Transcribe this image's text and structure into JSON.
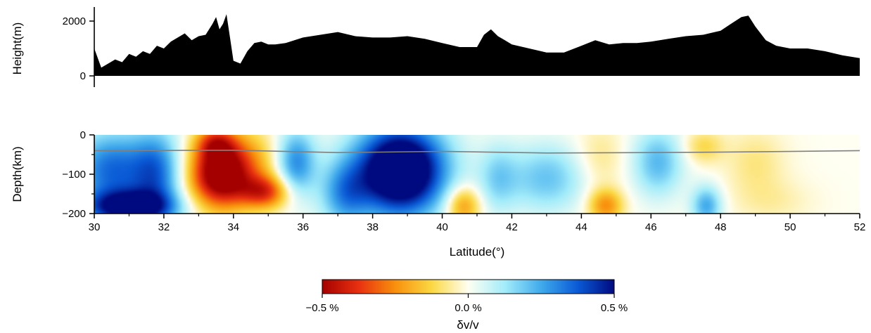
{
  "chart_data": [
    {
      "type": "area",
      "panel": "topography",
      "ylabel": "Height(m)",
      "ylim": [
        0,
        2400
      ],
      "yticks": [
        0,
        2000
      ],
      "xlim": [
        30,
        52
      ],
      "fill_color": "#000000",
      "x": [
        30.0,
        30.2,
        30.4,
        30.6,
        30.8,
        31.0,
        31.2,
        31.4,
        31.6,
        31.8,
        32.0,
        32.2,
        32.4,
        32.6,
        32.8,
        33.0,
        33.2,
        33.4,
        33.5,
        33.6,
        33.7,
        33.8,
        33.9,
        34.0,
        34.2,
        34.4,
        34.6,
        34.8,
        35.0,
        35.2,
        35.5,
        36.0,
        36.5,
        37.0,
        37.5,
        38.0,
        38.5,
        39.0,
        39.5,
        40.0,
        40.5,
        41.0,
        41.2,
        41.4,
        41.6,
        41.8,
        42.0,
        42.5,
        43.0,
        43.5,
        44.0,
        44.4,
        44.8,
        45.2,
        45.6,
        46.0,
        46.5,
        47.0,
        47.5,
        48.0,
        48.3,
        48.6,
        48.8,
        49.0,
        49.3,
        49.6,
        50.0,
        50.5,
        51.0,
        51.5,
        52.0
      ],
      "y": [
        1000,
        300,
        450,
        600,
        500,
        800,
        700,
        900,
        800,
        1100,
        1000,
        1250,
        1400,
        1550,
        1300,
        1450,
        1500,
        1900,
        2150,
        1700,
        1900,
        2250,
        1400,
        550,
        450,
        900,
        1200,
        1250,
        1150,
        1150,
        1200,
        1400,
        1500,
        1600,
        1450,
        1400,
        1400,
        1450,
        1350,
        1200,
        1050,
        1050,
        1500,
        1700,
        1450,
        1300,
        1150,
        1000,
        850,
        850,
        1100,
        1300,
        1150,
        1200,
        1200,
        1250,
        1350,
        1450,
        1500,
        1650,
        1900,
        2150,
        2200,
        1800,
        1300,
        1100,
        1000,
        1000,
        900,
        750,
        650
      ]
    },
    {
      "type": "heatmap",
      "panel": "tomography",
      "xlabel": "Latitude(°)",
      "ylabel": "Depth(km)",
      "xlim": [
        30,
        52
      ],
      "ylim": [
        -200,
        0
      ],
      "xticks": [
        30,
        32,
        34,
        36,
        38,
        40,
        42,
        44,
        46,
        48,
        50,
        52
      ],
      "yticks": [
        0,
        -100,
        -200
      ],
      "moho_line": {
        "color": "#808080",
        "x": [
          30,
          34,
          37,
          40,
          43,
          46,
          49,
          52
        ],
        "y": [
          -40,
          -39,
          -45,
          -42,
          -46,
          -45,
          -43,
          -40
        ]
      },
      "anomalies": [
        {
          "x": 31.0,
          "y": -185,
          "v": 0.5,
          "sx": 0.9,
          "sy": 30
        },
        {
          "x": 30.5,
          "y": -90,
          "v": 0.35,
          "sx": 0.8,
          "sy": 70
        },
        {
          "x": 31.8,
          "y": -100,
          "v": 0.3,
          "sx": 0.5,
          "sy": 80
        },
        {
          "x": 33.6,
          "y": -100,
          "v": -0.6,
          "sx": 0.6,
          "sy": 60
        },
        {
          "x": 33.5,
          "y": -20,
          "v": -0.25,
          "sx": 0.4,
          "sy": 30
        },
        {
          "x": 34.9,
          "y": -145,
          "v": -0.35,
          "sx": 0.5,
          "sy": 30
        },
        {
          "x": 34.5,
          "y": -70,
          "v": -0.15,
          "sx": 0.6,
          "sy": 60
        },
        {
          "x": 35.8,
          "y": -70,
          "v": 0.3,
          "sx": 0.4,
          "sy": 60
        },
        {
          "x": 38.8,
          "y": -90,
          "v": 0.75,
          "sx": 0.9,
          "sy": 80
        },
        {
          "x": 37.2,
          "y": -150,
          "v": 0.25,
          "sx": 0.5,
          "sy": 60
        },
        {
          "x": 40.6,
          "y": -180,
          "v": -0.25,
          "sx": 0.35,
          "sy": 35
        },
        {
          "x": 41.6,
          "y": -110,
          "v": 0.15,
          "sx": 0.4,
          "sy": 60
        },
        {
          "x": 43.0,
          "y": -110,
          "v": 0.2,
          "sx": 0.8,
          "sy": 60
        },
        {
          "x": 44.7,
          "y": -180,
          "v": -0.25,
          "sx": 0.35,
          "sy": 30
        },
        {
          "x": 44.5,
          "y": -60,
          "v": -0.08,
          "sx": 0.5,
          "sy": 60
        },
        {
          "x": 46.2,
          "y": -70,
          "v": 0.22,
          "sx": 0.5,
          "sy": 60
        },
        {
          "x": 47.6,
          "y": -180,
          "v": 0.25,
          "sx": 0.3,
          "sy": 35
        },
        {
          "x": 47.5,
          "y": -30,
          "v": -0.12,
          "sx": 0.4,
          "sy": 30
        },
        {
          "x": 49.0,
          "y": -70,
          "v": -0.08,
          "sx": 0.6,
          "sy": 60
        },
        {
          "x": 49.5,
          "y": -170,
          "v": -0.05,
          "sx": 0.8,
          "sy": 40
        }
      ]
    }
  ],
  "colorbar": {
    "title": "δv/v",
    "min": -0.5,
    "max": 0.5,
    "tick_labels": [
      "−0.5 %",
      "0.0 %",
      "0.5 %"
    ],
    "stops": [
      {
        "value": -0.5,
        "color": "#a50000"
      },
      {
        "value": -0.375,
        "color": "#e83010"
      },
      {
        "value": -0.25,
        "color": "#f8900c"
      },
      {
        "value": -0.125,
        "color": "#fbd843"
      },
      {
        "value": 0.0,
        "color": "#fffff2"
      },
      {
        "value": 0.125,
        "color": "#a3ecfa"
      },
      {
        "value": 0.25,
        "color": "#40aaec"
      },
      {
        "value": 0.375,
        "color": "#0a5ad6"
      },
      {
        "value": 0.5,
        "color": "#000a80"
      }
    ]
  }
}
